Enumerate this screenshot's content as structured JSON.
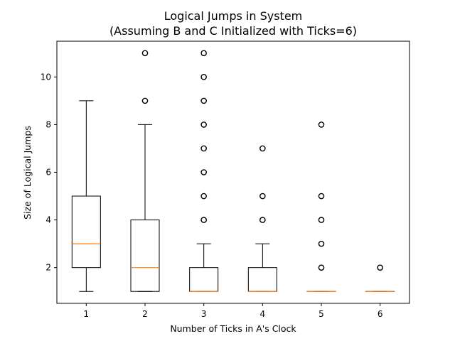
{
  "chart_data": {
    "type": "boxplot",
    "title": "Logical Jumps in System",
    "subtitle": "(Assuming B and C Initialized with Ticks=6)",
    "xlabel": "Number of Ticks in A's Clock",
    "ylabel": "Size of Logical Jumps",
    "categories": [
      "1",
      "2",
      "3",
      "4",
      "5",
      "6"
    ],
    "ylim": [
      0.5,
      11.5
    ],
    "yticks": [
      2,
      4,
      6,
      8,
      10
    ],
    "grid": false,
    "colors": {
      "box": "#000000",
      "median": "#ff7f0e",
      "outlier": "#000000"
    },
    "boxes": [
      {
        "label": "1",
        "whisker_low": 1,
        "q1": 2,
        "median": 3,
        "q3": 5,
        "whisker_high": 9,
        "outliers": []
      },
      {
        "label": "2",
        "whisker_low": 1,
        "q1": 1,
        "median": 2,
        "q3": 4,
        "whisker_high": 8,
        "outliers": [
          9,
          11
        ]
      },
      {
        "label": "3",
        "whisker_low": 1,
        "q1": 1,
        "median": 1,
        "q3": 2,
        "whisker_high": 3,
        "outliers": [
          4,
          5,
          6,
          7,
          8,
          9,
          10,
          11
        ]
      },
      {
        "label": "4",
        "whisker_low": 1,
        "q1": 1,
        "median": 1,
        "q3": 2,
        "whisker_high": 3,
        "outliers": [
          4,
          5,
          7
        ]
      },
      {
        "label": "5",
        "whisker_low": 1,
        "q1": 1,
        "median": 1,
        "q3": 1,
        "whisker_high": 1,
        "outliers": [
          2,
          3,
          4,
          5,
          8
        ]
      },
      {
        "label": "6",
        "whisker_low": 1,
        "q1": 1,
        "median": 1,
        "q3": 1,
        "whisker_high": 1,
        "outliers": [
          2
        ]
      }
    ]
  }
}
